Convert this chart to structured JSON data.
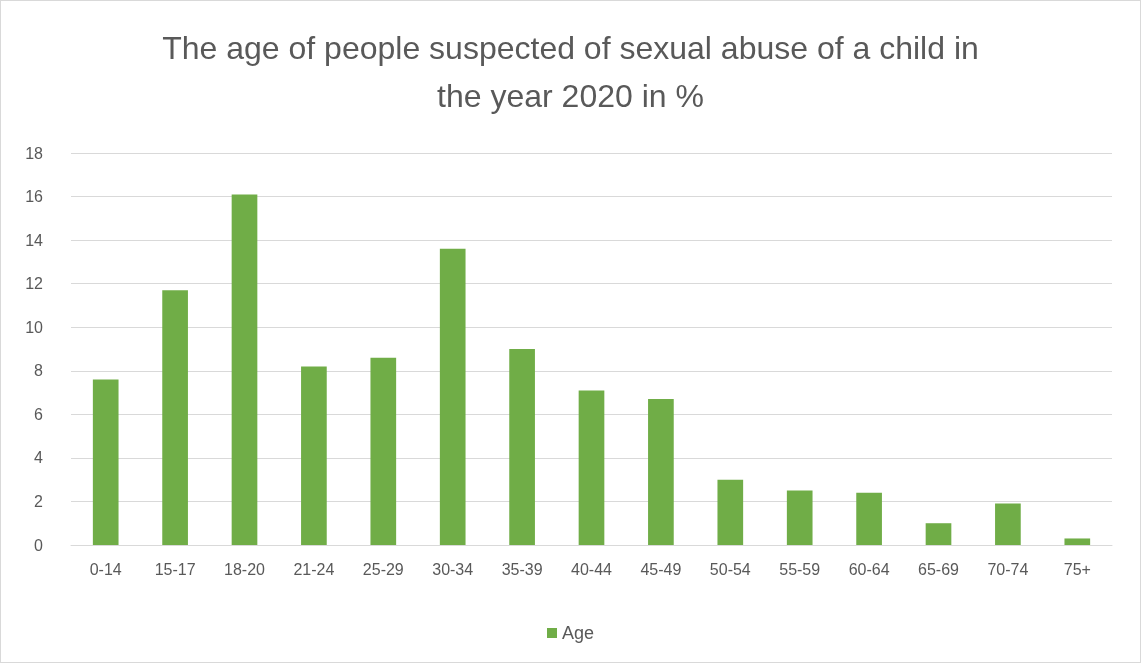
{
  "chart_data": {
    "type": "bar",
    "title": "The age of people suspected of sexual abuse of a child in\nthe year 2020 in %",
    "categories": [
      "0-14",
      "15-17",
      "18-20",
      "21-24",
      "25-29",
      "30-34",
      "35-39",
      "40-44",
      "45-49",
      "50-54",
      "55-59",
      "60-64",
      "65-69",
      "70-74",
      "75+"
    ],
    "series": [
      {
        "name": "Age",
        "color": "#70ad47",
        "values": [
          7.6,
          11.7,
          16.1,
          8.2,
          8.6,
          13.6,
          9.0,
          7.1,
          6.7,
          3.0,
          2.5,
          2.4,
          1.0,
          1.9,
          0.3
        ]
      }
    ],
    "ylim": [
      0,
      18
    ],
    "yticks": [
      0,
      2,
      4,
      6,
      8,
      10,
      12,
      14,
      16,
      18
    ],
    "grid": "y",
    "legend": "bottom"
  }
}
